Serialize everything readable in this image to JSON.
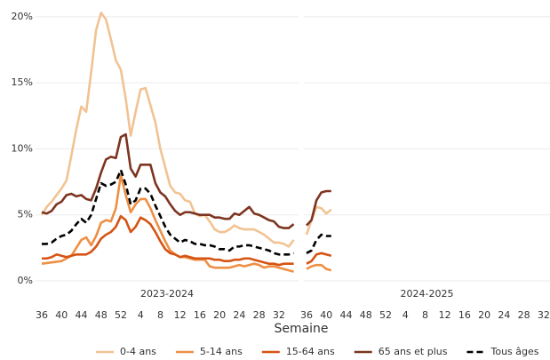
{
  "chart_data": {
    "type": "line",
    "x_label": "Semaine",
    "ylim": [
      0,
      20.6
    ],
    "yticks": [
      {
        "value": 0,
        "label": "0%"
      },
      {
        "value": 5,
        "label": "5%"
      },
      {
        "value": 10,
        "label": "10%"
      },
      {
        "value": 15,
        "label": "15%"
      },
      {
        "value": 20,
        "label": "20%"
      }
    ],
    "grid": true,
    "categories": [
      "36",
      null,
      null,
      null,
      "40",
      null,
      null,
      null,
      "44",
      null,
      null,
      null,
      "48",
      null,
      null,
      null,
      "52",
      null,
      null,
      null,
      "4",
      null,
      null,
      null,
      "8",
      null,
      null,
      null,
      "12",
      null,
      null,
      null,
      "16",
      null,
      null,
      null,
      "20",
      null,
      null,
      null,
      "24",
      null,
      null,
      null,
      "28",
      null,
      null,
      null,
      "32",
      null,
      null,
      null
    ],
    "series": [
      {
        "name": "0-4 ans",
        "color": "#f1c393",
        "dashed": false
      },
      {
        "name": "5-14 ans",
        "color": "#ee8f45",
        "dashed": false
      },
      {
        "name": "15-64 ans",
        "color": "#d65414",
        "dashed": false
      },
      {
        "name": "65 ans et plus",
        "color": "#7d3420",
        "dashed": false
      },
      {
        "name": "Tous âges",
        "color": "#000000",
        "dashed": true
      }
    ],
    "panels": [
      {
        "label": "2023-2024",
        "series": [
          {
            "values": [
              5.0,
              5.6,
              6.0,
              6.5,
              7.0,
              7.6,
              9.5,
              11.5,
              13.2,
              12.8,
              15.8,
              19.0,
              20.3,
              19.8,
              18.3,
              16.7,
              16.0,
              13.8,
              11.0,
              12.8,
              14.5,
              14.6,
              13.3,
              12.0,
              10.0,
              8.6,
              7.2,
              6.7,
              6.6,
              6.1,
              6.0,
              5.1,
              4.9,
              5.0,
              4.5,
              3.9,
              3.7,
              3.7,
              3.9,
              4.2,
              4.0,
              3.9,
              3.9,
              3.9,
              3.7,
              3.5,
              3.2,
              2.9,
              2.9,
              2.8,
              2.6,
              3.1
            ]
          },
          {
            "values": [
              1.3,
              1.35,
              1.4,
              1.45,
              1.5,
              1.7,
              1.9,
              2.5,
              3.1,
              3.3,
              2.7,
              3.4,
              4.4,
              4.6,
              4.5,
              5.5,
              8.0,
              6.5,
              5.2,
              5.8,
              6.2,
              6.2,
              5.5,
              4.6,
              3.8,
              3.0,
              2.3,
              2.0,
              1.8,
              1.8,
              1.7,
              1.6,
              1.6,
              1.6,
              1.1,
              1.0,
              1.0,
              1.0,
              1.0,
              1.1,
              1.2,
              1.1,
              1.2,
              1.3,
              1.2,
              1.0,
              1.1,
              1.1,
              1.0,
              0.9,
              0.8,
              0.7
            ]
          },
          {
            "values": [
              1.7,
              1.7,
              1.8,
              2.0,
              1.9,
              1.8,
              1.9,
              2.0,
              2.0,
              2.0,
              2.2,
              2.6,
              3.2,
              3.5,
              3.7,
              4.1,
              4.9,
              4.6,
              3.7,
              4.1,
              4.8,
              4.6,
              4.3,
              3.7,
              3.0,
              2.4,
              2.1,
              2.0,
              1.8,
              1.9,
              1.8,
              1.7,
              1.7,
              1.7,
              1.7,
              1.6,
              1.6,
              1.5,
              1.5,
              1.6,
              1.6,
              1.7,
              1.7,
              1.6,
              1.5,
              1.4,
              1.3,
              1.3,
              1.2,
              1.3,
              1.3,
              1.3
            ]
          },
          {
            "values": [
              5.2,
              5.1,
              5.3,
              5.8,
              6.0,
              6.5,
              6.6,
              6.4,
              6.5,
              6.2,
              6.1,
              7.0,
              8.2,
              9.2,
              9.4,
              9.3,
              10.9,
              11.1,
              8.5,
              7.9,
              8.8,
              8.8,
              8.8,
              7.4,
              6.7,
              6.4,
              5.8,
              5.3,
              5.0,
              5.2,
              5.2,
              5.1,
              5.0,
              5.0,
              5.0,
              4.8,
              4.8,
              4.7,
              4.7,
              5.1,
              5.0,
              5.3,
              5.6,
              5.1,
              5.0,
              4.8,
              4.6,
              4.5,
              4.1,
              4.0,
              4.0,
              4.3
            ]
          },
          {
            "values": [
              2.8,
              2.8,
              2.9,
              3.2,
              3.4,
              3.5,
              3.8,
              4.3,
              4.7,
              4.4,
              5.0,
              6.2,
              7.4,
              7.2,
              7.3,
              7.5,
              8.4,
              7.3,
              5.8,
              6.1,
              7.0,
              7.0,
              6.6,
              5.7,
              4.9,
              4.1,
              3.5,
              3.2,
              2.9,
              3.1,
              3.0,
              2.8,
              2.8,
              2.7,
              2.7,
              2.6,
              2.4,
              2.4,
              2.3,
              2.6,
              2.6,
              2.7,
              2.7,
              2.6,
              2.5,
              2.4,
              2.3,
              2.1,
              2.0,
              2.0,
              2.0,
              2.1
            ]
          }
        ]
      },
      {
        "label": "2024-2025",
        "series": [
          {
            "values": [
              3.5,
              4.6,
              5.6,
              5.5,
              5.1,
              5.4,
              null,
              null,
              null,
              null,
              null,
              null,
              null,
              null,
              null,
              null,
              null,
              null,
              null,
              null,
              null,
              null,
              null,
              null,
              null,
              null,
              null,
              null,
              null,
              null,
              null,
              null,
              null,
              null,
              null,
              null,
              null,
              null,
              null,
              null,
              null,
              null,
              null,
              null,
              null,
              null,
              null,
              null,
              null,
              null,
              null,
              null
            ]
          },
          {
            "values": [
              0.9,
              1.1,
              1.2,
              1.2,
              0.9,
              0.8,
              null,
              null,
              null,
              null,
              null,
              null,
              null,
              null,
              null,
              null,
              null,
              null,
              null,
              null,
              null,
              null,
              null,
              null,
              null,
              null,
              null,
              null,
              null,
              null,
              null,
              null,
              null,
              null,
              null,
              null,
              null,
              null,
              null,
              null,
              null,
              null,
              null,
              null,
              null,
              null,
              null,
              null,
              null,
              null,
              null,
              null
            ]
          },
          {
            "values": [
              1.3,
              1.5,
              2.0,
              2.1,
              2.0,
              1.9,
              null,
              null,
              null,
              null,
              null,
              null,
              null,
              null,
              null,
              null,
              null,
              null,
              null,
              null,
              null,
              null,
              null,
              null,
              null,
              null,
              null,
              null,
              null,
              null,
              null,
              null,
              null,
              null,
              null,
              null,
              null,
              null,
              null,
              null,
              null,
              null,
              null,
              null,
              null,
              null,
              null,
              null,
              null,
              null,
              null,
              null
            ]
          },
          {
            "values": [
              4.2,
              4.6,
              6.1,
              6.7,
              6.8,
              6.8,
              null,
              null,
              null,
              null,
              null,
              null,
              null,
              null,
              null,
              null,
              null,
              null,
              null,
              null,
              null,
              null,
              null,
              null,
              null,
              null,
              null,
              null,
              null,
              null,
              null,
              null,
              null,
              null,
              null,
              null,
              null,
              null,
              null,
              null,
              null,
              null,
              null,
              null,
              null,
              null,
              null,
              null,
              null,
              null,
              null,
              null
            ]
          },
          {
            "values": [
              2.1,
              2.3,
              3.1,
              3.5,
              3.4,
              3.4,
              null,
              null,
              null,
              null,
              null,
              null,
              null,
              null,
              null,
              null,
              null,
              null,
              null,
              null,
              null,
              null,
              null,
              null,
              null,
              null,
              null,
              null,
              null,
              null,
              null,
              null,
              null,
              null,
              null,
              null,
              null,
              null,
              null,
              null,
              null,
              null,
              null,
              null,
              null,
              null,
              null,
              null,
              null,
              null,
              null,
              null
            ]
          }
        ]
      }
    ]
  }
}
